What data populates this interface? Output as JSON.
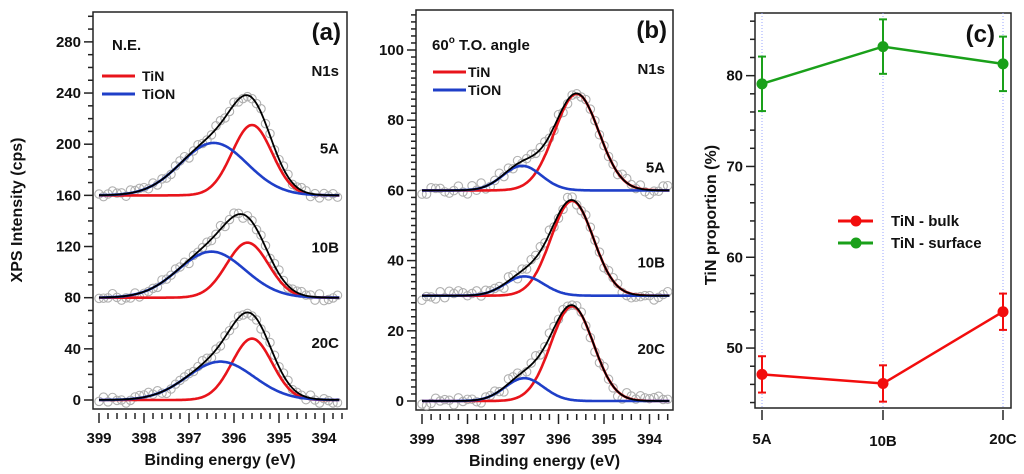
{
  "chart_data": [
    {
      "type": "line",
      "panel_tag": "(a)",
      "condition_label": "N.E.",
      "core_level": "N1s",
      "xlabel": "Binding energy (eV)",
      "ylabel": "XPS Intensity (cps)",
      "xlim": [
        399,
        393.5
      ],
      "x_reversed": true,
      "ylim": [
        0,
        303
      ],
      "xticks": [
        399,
        398,
        397,
        396,
        395,
        394
      ],
      "yticks": [
        0,
        40,
        80,
        120,
        160,
        200,
        240,
        280
      ],
      "legend": [
        {
          "name": "TiN",
          "color": "#e8141b"
        },
        {
          "name": "TiON",
          "color": "#1f3fc8"
        }
      ],
      "legend_position": "top-left",
      "fit_color": "#000000",
      "data_point_color": "#b0b0b0",
      "samples": [
        {
          "label": "5A",
          "baseline": 160,
          "components": [
            {
              "name": "TiN",
              "center": 395.6,
              "amplitude": 55,
              "fwhm": 1.05
            },
            {
              "name": "TiON",
              "center": 396.45,
              "amplitude": 41,
              "fwhm": 1.75
            }
          ]
        },
        {
          "label": "10B",
          "baseline": 80,
          "components": [
            {
              "name": "TiN",
              "center": 395.7,
              "amplitude": 43,
              "fwhm": 1.1
            },
            {
              "name": "TiON",
              "center": 396.5,
              "amplitude": 36,
              "fwhm": 1.75
            }
          ]
        },
        {
          "label": "20C",
          "baseline": 0,
          "components": [
            {
              "name": "TiN",
              "center": 395.6,
              "amplitude": 48,
              "fwhm": 1.05
            },
            {
              "name": "TiON",
              "center": 396.3,
              "amplitude": 30,
              "fwhm": 1.75
            }
          ]
        }
      ],
      "data_range_ev": [
        399,
        393.65
      ]
    },
    {
      "type": "line",
      "panel_tag": "(b)",
      "condition_label": "60",
      "condition_sup": "o",
      "condition_suffix": " T.O. angle",
      "core_level": "N1s",
      "xlabel": "Binding energy (eV)",
      "ylabel": "",
      "xlim": [
        399,
        393.5
      ],
      "x_reversed": true,
      "ylim": [
        0,
        111
      ],
      "xticks": [
        399,
        398,
        397,
        396,
        395,
        394
      ],
      "yticks": [
        0,
        20,
        40,
        60,
        80,
        100
      ],
      "legend": [
        {
          "name": "TiN",
          "color": "#e8141b"
        },
        {
          "name": "TiON",
          "color": "#1f3fc8"
        }
      ],
      "legend_position": "top-left",
      "fit_color": "#000000",
      "data_point_color": "#b0b0b0",
      "samples": [
        {
          "label": "5A",
          "baseline": 60,
          "components": [
            {
              "name": "TiN",
              "center": 395.6,
              "amplitude": 27.5,
              "fwhm": 1.15
            },
            {
              "name": "TiON",
              "center": 396.8,
              "amplitude": 7,
              "fwhm": 1.0
            }
          ]
        },
        {
          "label": "10B",
          "baseline": 30,
          "components": [
            {
              "name": "TiN",
              "center": 395.7,
              "amplitude": 27,
              "fwhm": 1.1
            },
            {
              "name": "TiON",
              "center": 396.75,
              "amplitude": 5.5,
              "fwhm": 1.0
            }
          ]
        },
        {
          "label": "20C",
          "baseline": 0,
          "components": [
            {
              "name": "TiN",
              "center": 395.7,
              "amplitude": 27,
              "fwhm": 1.1
            },
            {
              "name": "TiON",
              "center": 396.75,
              "amplitude": 6.5,
              "fwhm": 1.0
            }
          ]
        }
      ],
      "data_range_ev": [
        399,
        393.55
      ]
    },
    {
      "type": "line",
      "panel_tag": "(c)",
      "xlabel": "",
      "ylabel": "TiN proportion (%)",
      "categories": [
        "5A",
        "10B",
        "20C"
      ],
      "ylim": [
        43.4,
        86.9
      ],
      "yticks": [
        50,
        60,
        70,
        80
      ],
      "legend_position": "center-right",
      "series": [
        {
          "name": "TiN - bulk",
          "color": "#f20d0d",
          "values": [
            47.1,
            46.1,
            54.0
          ],
          "errors": [
            2.0,
            2.0,
            2.0
          ]
        },
        {
          "name": "TiN - surface",
          "color": "#1aa01a",
          "values": [
            79.1,
            83.2,
            81.3
          ],
          "errors": [
            3.0,
            3.0,
            3.0
          ]
        }
      ]
    }
  ]
}
